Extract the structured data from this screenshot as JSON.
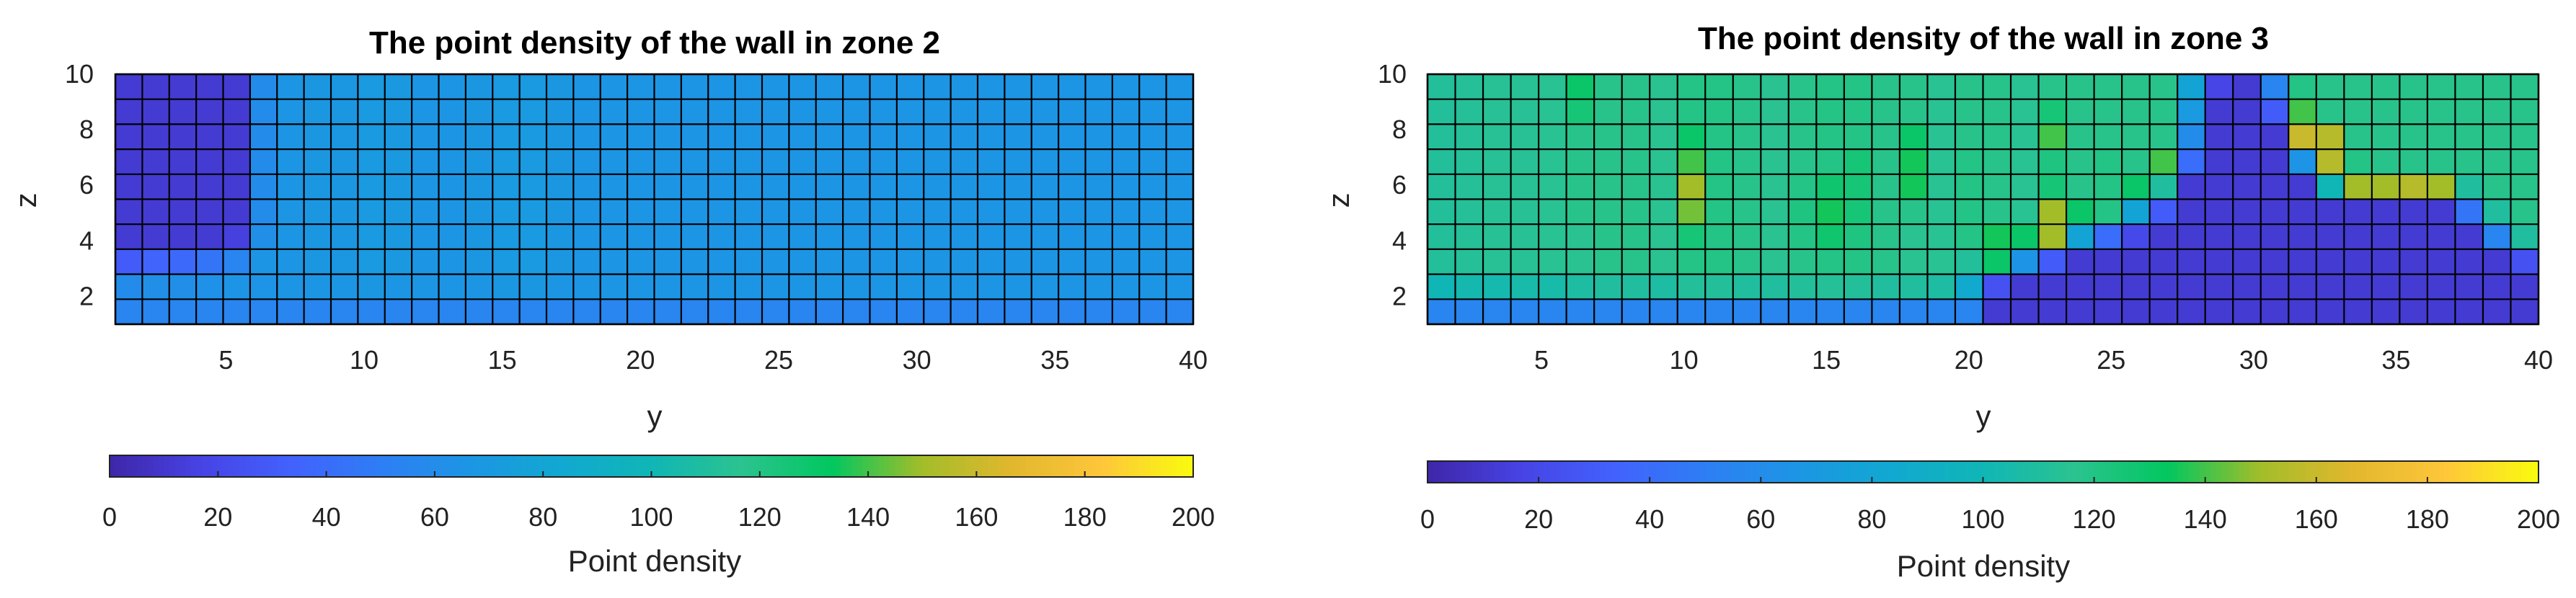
{
  "chart_data": [
    {
      "type": "heatmap",
      "title": "The point density of the wall in zone 2",
      "xlabel": "y",
      "ylabel": "z",
      "xlim": [
        1,
        40
      ],
      "ylim": [
        1,
        10
      ],
      "x_ticks": [
        5,
        10,
        15,
        20,
        25,
        30,
        35,
        40
      ],
      "y_ticks": [
        2,
        4,
        6,
        8,
        10
      ],
      "grid": true,
      "colorbar": {
        "label": "Point density",
        "range": [
          0,
          200
        ],
        "ticks": [
          0,
          20,
          40,
          60,
          80,
          100,
          120,
          140,
          160,
          180,
          200
        ],
        "placement": "bottom"
      },
      "colormap": [
        "#3e26a8",
        "#4743e4",
        "#4261fd",
        "#2e7ef4",
        "#1c96e4",
        "#11a8d1",
        "#10b6b6",
        "#2bc38f",
        "#02c75f",
        "#a3bd29",
        "#e2b72e",
        "#fec73a",
        "#f9fb0e"
      ],
      "z_rows": [
        1,
        2,
        3,
        4,
        5,
        6,
        7,
        8,
        9,
        10
      ],
      "y_cols": [
        1,
        2,
        3,
        4,
        5,
        6,
        7,
        8,
        9,
        10,
        11,
        12,
        13,
        14,
        15,
        16,
        17,
        18,
        19,
        20,
        21,
        22,
        23,
        24,
        25,
        26,
        27,
        28,
        29,
        30,
        31,
        32,
        33,
        34,
        35,
        36,
        37,
        38,
        39,
        40
      ],
      "values": [
        [
          55,
          55,
          55,
          55,
          55,
          55,
          55,
          55,
          55,
          55,
          55,
          55,
          55,
          55,
          55,
          55,
          55,
          55,
          55,
          55,
          55,
          55,
          55,
          55,
          55,
          55,
          55,
          55,
          55,
          55,
          55,
          55,
          55,
          55,
          55,
          55,
          55,
          55,
          55,
          55
        ],
        [
          60,
          62,
          62,
          63,
          65,
          65,
          66,
          67,
          67,
          68,
          67,
          66,
          66,
          67,
          68,
          68,
          67,
          66,
          66,
          66,
          66,
          66,
          66,
          66,
          66,
          66,
          66,
          66,
          66,
          66,
          66,
          66,
          66,
          66,
          66,
          66,
          66,
          66,
          66,
          66
        ],
        [
          30,
          35,
          38,
          45,
          55,
          66,
          67,
          68,
          68,
          70,
          69,
          67,
          66,
          68,
          70,
          70,
          68,
          66,
          66,
          66,
          66,
          66,
          66,
          66,
          66,
          66,
          66,
          66,
          66,
          66,
          66,
          66,
          66,
          66,
          66,
          66,
          66,
          66,
          66,
          66
        ],
        [
          12,
          12,
          12,
          12,
          15,
          62,
          67,
          68,
          68,
          70,
          69,
          67,
          66,
          68,
          70,
          70,
          68,
          66,
          66,
          66,
          66,
          66,
          66,
          66,
          66,
          66,
          66,
          66,
          66,
          66,
          66,
          66,
          66,
          66,
          66,
          66,
          66,
          66,
          66,
          66
        ],
        [
          12,
          12,
          12,
          12,
          12,
          60,
          67,
          68,
          68,
          70,
          69,
          67,
          66,
          68,
          70,
          70,
          68,
          66,
          66,
          66,
          66,
          66,
          66,
          66,
          66,
          66,
          66,
          66,
          66,
          66,
          66,
          66,
          66,
          66,
          66,
          66,
          66,
          66,
          66,
          66
        ],
        [
          12,
          12,
          12,
          12,
          12,
          60,
          67,
          68,
          68,
          70,
          69,
          67,
          66,
          68,
          70,
          70,
          68,
          66,
          66,
          66,
          66,
          66,
          66,
          66,
          66,
          66,
          66,
          66,
          66,
          66,
          66,
          66,
          66,
          66,
          66,
          66,
          66,
          66,
          66,
          66
        ],
        [
          12,
          12,
          12,
          12,
          12,
          60,
          67,
          68,
          68,
          70,
          69,
          67,
          66,
          68,
          70,
          70,
          68,
          66,
          66,
          66,
          66,
          66,
          66,
          66,
          66,
          66,
          66,
          66,
          66,
          66,
          66,
          66,
          66,
          66,
          66,
          66,
          66,
          66,
          66,
          66
        ],
        [
          12,
          12,
          12,
          12,
          12,
          60,
          67,
          68,
          68,
          70,
          69,
          67,
          66,
          68,
          70,
          70,
          68,
          66,
          66,
          66,
          66,
          66,
          66,
          66,
          66,
          66,
          66,
          66,
          66,
          66,
          66,
          66,
          66,
          66,
          66,
          66,
          66,
          66,
          66,
          66
        ],
        [
          12,
          12,
          12,
          12,
          12,
          60,
          67,
          68,
          68,
          70,
          69,
          67,
          66,
          68,
          70,
          70,
          68,
          66,
          66,
          66,
          66,
          66,
          66,
          66,
          66,
          66,
          66,
          66,
          66,
          66,
          66,
          66,
          66,
          66,
          66,
          66,
          66,
          66,
          66,
          66
        ],
        [
          12,
          12,
          12,
          12,
          12,
          60,
          67,
          68,
          68,
          70,
          69,
          67,
          66,
          68,
          70,
          70,
          68,
          66,
          66,
          66,
          66,
          66,
          66,
          66,
          66,
          66,
          66,
          66,
          66,
          66,
          66,
          66,
          66,
          66,
          66,
          66,
          66,
          66,
          66,
          66
        ]
      ]
    },
    {
      "type": "heatmap",
      "title": "The point density of the wall in zone 3",
      "xlabel": "y",
      "ylabel": "z",
      "xlim": [
        1,
        40
      ],
      "ylim": [
        1,
        10
      ],
      "x_ticks": [
        5,
        10,
        15,
        20,
        25,
        30,
        35,
        40
      ],
      "y_ticks": [
        2,
        4,
        6,
        8,
        10
      ],
      "grid": true,
      "colorbar": {
        "label": "Point density",
        "range": [
          0,
          200
        ],
        "ticks": [
          0,
          20,
          40,
          60,
          80,
          100,
          120,
          140,
          160,
          180,
          200
        ],
        "placement": "bottom"
      },
      "colormap": [
        "#3e26a8",
        "#4743e4",
        "#4261fd",
        "#2e7ef4",
        "#1c96e4",
        "#11a8d1",
        "#10b6b6",
        "#2bc38f",
        "#02c75f",
        "#a3bd29",
        "#e2b72e",
        "#fec73a",
        "#f9fb0e"
      ],
      "z_rows": [
        1,
        2,
        3,
        4,
        5,
        6,
        7,
        8,
        9,
        10
      ],
      "y_cols": [
        1,
        2,
        3,
        4,
        5,
        6,
        7,
        8,
        9,
        10,
        11,
        12,
        13,
        14,
        15,
        16,
        17,
        18,
        19,
        20,
        21,
        22,
        23,
        24,
        25,
        26,
        27,
        28,
        29,
        30,
        31,
        32,
        33,
        34,
        35,
        36,
        37,
        38,
        39,
        40
      ],
      "values": [
        [
          55,
          55,
          55,
          55,
          55,
          55,
          55,
          55,
          55,
          55,
          55,
          55,
          55,
          55,
          55,
          55,
          55,
          55,
          55,
          55,
          12,
          12,
          12,
          12,
          12,
          12,
          12,
          12,
          12,
          12,
          12,
          12,
          12,
          12,
          12,
          12,
          12,
          12,
          12,
          12
        ],
        [
          100,
          103,
          104,
          105,
          105,
          108,
          110,
          110,
          108,
          112,
          112,
          110,
          110,
          112,
          113,
          112,
          110,
          110,
          108,
          85,
          25,
          12,
          12,
          12,
          12,
          12,
          12,
          12,
          12,
          12,
          12,
          12,
          12,
          12,
          12,
          12,
          12,
          12,
          12,
          12
        ],
        [
          112,
          113,
          114,
          114,
          115,
          116,
          118,
          118,
          116,
          120,
          120,
          118,
          116,
          118,
          120,
          120,
          118,
          116,
          115,
          112,
          130,
          65,
          30,
          12,
          12,
          12,
          12,
          12,
          12,
          12,
          12,
          12,
          12,
          12,
          12,
          12,
          12,
          12,
          12,
          25
        ],
        [
          112,
          113,
          114,
          114,
          115,
          116,
          118,
          118,
          116,
          125,
          120,
          118,
          116,
          120,
          128,
          122,
          118,
          116,
          115,
          120,
          135,
          130,
          150,
          80,
          40,
          20,
          12,
          12,
          12,
          12,
          12,
          12,
          12,
          12,
          12,
          12,
          12,
          12,
          55,
          110
        ],
        [
          112,
          113,
          114,
          114,
          115,
          118,
          118,
          118,
          116,
          145,
          120,
          118,
          116,
          122,
          135,
          125,
          118,
          118,
          115,
          120,
          118,
          115,
          150,
          130,
          120,
          80,
          30,
          12,
          12,
          12,
          12,
          12,
          12,
          12,
          12,
          12,
          12,
          45,
          110,
          118
        ],
        [
          112,
          113,
          114,
          114,
          115,
          118,
          118,
          118,
          116,
          150,
          120,
          118,
          116,
          120,
          128,
          125,
          118,
          135,
          115,
          120,
          118,
          115,
          125,
          118,
          120,
          130,
          110,
          12,
          12,
          12,
          12,
          12,
          100,
          150,
          150,
          155,
          150,
          110,
          118,
          118
        ],
        [
          112,
          113,
          114,
          114,
          115,
          118,
          118,
          118,
          116,
          140,
          120,
          118,
          116,
          118,
          120,
          125,
          118,
          135,
          115,
          120,
          118,
          115,
          122,
          118,
          120,
          118,
          140,
          40,
          12,
          12,
          12,
          65,
          155,
          120,
          118,
          118,
          118,
          118,
          118,
          118
        ],
        [
          112,
          113,
          114,
          114,
          115,
          118,
          118,
          118,
          116,
          130,
          120,
          118,
          116,
          118,
          120,
          120,
          118,
          130,
          115,
          118,
          118,
          115,
          140,
          118,
          118,
          118,
          118,
          60,
          12,
          12,
          12,
          160,
          155,
          118,
          118,
          118,
          118,
          118,
          118,
          118
        ],
        [
          112,
          113,
          114,
          114,
          115,
          125,
          118,
          118,
          116,
          120,
          120,
          118,
          116,
          118,
          120,
          120,
          118,
          118,
          115,
          118,
          118,
          115,
          125,
          118,
          118,
          118,
          118,
          70,
          12,
          12,
          30,
          140,
          118,
          118,
          118,
          118,
          118,
          118,
          118,
          118
        ],
        [
          112,
          113,
          114,
          114,
          115,
          130,
          118,
          118,
          116,
          120,
          120,
          118,
          116,
          118,
          120,
          120,
          118,
          118,
          115,
          118,
          118,
          115,
          118,
          118,
          118,
          118,
          118,
          80,
          18,
          12,
          55,
          120,
          118,
          118,
          118,
          118,
          118,
          118,
          118,
          118
        ]
      ]
    }
  ]
}
